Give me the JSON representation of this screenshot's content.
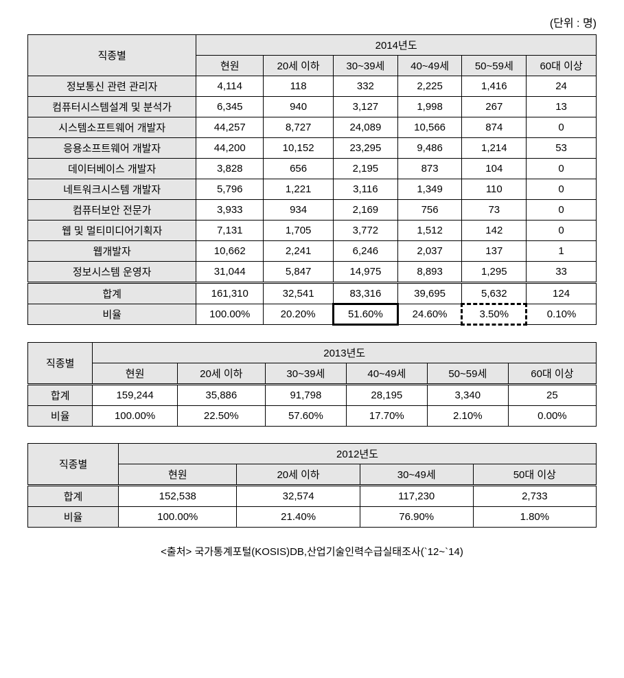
{
  "unit_label": "(단위 : 명)",
  "table2014": {
    "year_header": "2014년도",
    "row_header": "직종별",
    "columns": [
      "현원",
      "20세 이하",
      "30~39세",
      "40~49세",
      "50~59세",
      "60대 이상"
    ],
    "rows": [
      {
        "label": "정보통신 관련   관리자",
        "values": [
          "4,114",
          "118",
          "332",
          "2,225",
          "1,416",
          "24"
        ]
      },
      {
        "label": "컴퓨터시스템설계 및 분석가",
        "values": [
          "6,345",
          "940",
          "3,127",
          "1,998",
          "267",
          "13"
        ]
      },
      {
        "label": "시스템소프트웨어 개발자",
        "values": [
          "44,257",
          "8,727",
          "24,089",
          "10,566",
          "874",
          "0"
        ]
      },
      {
        "label": "응용소프트웨어 개발자",
        "values": [
          "44,200",
          "10,152",
          "23,295",
          "9,486",
          "1,214",
          "53"
        ]
      },
      {
        "label": "데이터베이스 개발자",
        "values": [
          "3,828",
          "656",
          "2,195",
          "873",
          "104",
          "0"
        ]
      },
      {
        "label": "네트워크시스템 개발자",
        "values": [
          "5,796",
          "1,221",
          "3,116",
          "1,349",
          "110",
          "0"
        ]
      },
      {
        "label": "컴퓨터보안 전문가",
        "values": [
          "3,933",
          "934",
          "2,169",
          "756",
          "73",
          "0"
        ]
      },
      {
        "label": "웹 및 멀티미디어기획자",
        "values": [
          "7,131",
          "1,705",
          "3,772",
          "1,512",
          "142",
          "0"
        ]
      },
      {
        "label": "웹개발자",
        "values": [
          "10,662",
          "2,241",
          "6,246",
          "2,037",
          "137",
          "1"
        ]
      },
      {
        "label": "정보시스템 운영자",
        "values": [
          "31,044",
          "5,847",
          "14,975",
          "8,893",
          "1,295",
          "33"
        ]
      }
    ],
    "total": {
      "label": "합계",
      "values": [
        "161,310",
        "32,541",
        "83,316",
        "39,695",
        "5,632",
        "124"
      ]
    },
    "ratio": {
      "label": "비율",
      "values": [
        "100.00%",
        "20.20%",
        "51.60%",
        "24.60%",
        "3.50%",
        "0.10%"
      ]
    },
    "highlight_solid_col": 2,
    "highlight_dashed_col": 4
  },
  "table2013": {
    "year_header": "2013년도",
    "row_header": "직종별",
    "columns": [
      "현원",
      "20세 이하",
      "30~39세",
      "40~49세",
      "50~59세",
      "60대 이상"
    ],
    "total": {
      "label": "합계",
      "values": [
        "159,244",
        "35,886",
        "91,798",
        "28,195",
        "3,340",
        "25"
      ]
    },
    "ratio": {
      "label": "비율",
      "values": [
        "100.00%",
        "22.50%",
        "57.60%",
        "17.70%",
        "2.10%",
        "0.00%"
      ]
    }
  },
  "table2012": {
    "year_header": "2012년도",
    "row_header": "직종별",
    "columns": [
      "현원",
      "20세 이하",
      "30~49세",
      "50대 이상"
    ],
    "total": {
      "label": "합계",
      "values": [
        "152,538",
        "32,574",
        "117,230",
        "2,733"
      ]
    },
    "ratio": {
      "label": "비율",
      "values": [
        "100.00%",
        "21.40%",
        "76.90%",
        "1.80%"
      ]
    }
  },
  "source": "<출처> 국가통계포털(KOSIS)DB,산업기술인력수급실태조사(`12~`14)",
  "styling": {
    "header_bg": "#e6e6e6",
    "border_color": "#000000",
    "body_bg": "#ffffff",
    "text_color": "#000000",
    "font_size_body": 15,
    "font_size_unit": 16
  }
}
